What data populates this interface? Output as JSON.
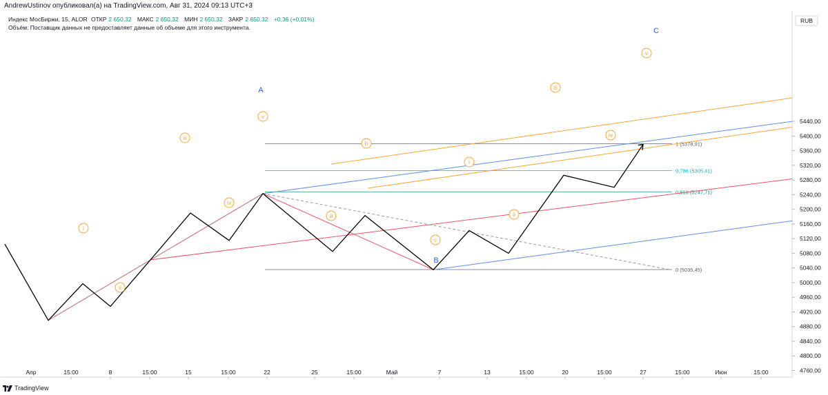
{
  "header": {
    "publisher_line": "AndrewUstinov опубликовал(а) на TradingView.com, Авг 31, 2024 09:13 UTC+3"
  },
  "legend": {
    "symbol": "Индекс МосБиржи, 15, ALOR",
    "open_label": "ОТКР",
    "open_value": "2 650,32",
    "high_label": "МАКС",
    "high_value": "2 650,32",
    "low_label": "МИН",
    "low_value": "2 650,32",
    "close_label": "ЗАКР",
    "close_value": "2 650,32",
    "change": "+0,36 (+0,01%)",
    "volume_note": "Объём: Поставщик данных не предоставляет данные об объеме для этого инструмента."
  },
  "footer": {
    "brand": "TradingView"
  },
  "chart_data": {
    "type": "line",
    "currency": "RUB",
    "ylim": [
      4735,
      5475
    ],
    "y_ticks": [
      {
        "v": 5440,
        "label": "5440,00"
      },
      {
        "v": 5400,
        "label": "5400,00"
      },
      {
        "v": 5360,
        "label": "5360,00"
      },
      {
        "v": 5320,
        "label": "5320,00"
      },
      {
        "v": 5280,
        "label": "5280,00"
      },
      {
        "v": 5240,
        "label": "5240,00"
      },
      {
        "v": 5200,
        "label": "5200,00"
      },
      {
        "v": 5160,
        "label": "5160,00"
      },
      {
        "v": 5120,
        "label": "5120,00"
      },
      {
        "v": 5080,
        "label": "5080,00"
      },
      {
        "v": 5040,
        "label": "5040,00"
      },
      {
        "v": 5000,
        "label": "5000,00"
      },
      {
        "v": 4960,
        "label": "4960,00"
      },
      {
        "v": 4920,
        "label": "4920,00"
      },
      {
        "v": 4880,
        "label": "4880,00"
      },
      {
        "v": 4840,
        "label": "4840,00"
      },
      {
        "v": 4800,
        "label": "4800,00"
      },
      {
        "v": 4760,
        "label": "4760,00"
      }
    ],
    "x_ticks": [
      "Апр",
      "15:00",
      "8",
      "15:00",
      "15",
      "15:00",
      "22",
      "25",
      "15:00",
      "Май",
      "7",
      "13",
      "15:00",
      "20",
      "15:00",
      "27",
      "15:00",
      "Июн",
      "15:00"
    ],
    "price_path": [
      [
        0,
        5105
      ],
      [
        1,
        4897
      ],
      [
        2,
        4997
      ],
      [
        3,
        4935
      ],
      [
        4,
        5062
      ],
      [
        5,
        5190
      ],
      [
        6,
        5115
      ],
      [
        7,
        5243
      ],
      [
        8,
        5085
      ],
      [
        9,
        5183
      ],
      [
        10,
        5035
      ],
      [
        11,
        5142
      ],
      [
        12,
        5080
      ],
      [
        13,
        5293
      ],
      [
        14,
        5260
      ],
      [
        15,
        5377
      ]
    ],
    "fibonacci_levels": [
      {
        "ratio": 1,
        "label": "1 (5378,91)",
        "value": 5378.91,
        "color": "#787b86"
      },
      {
        "ratio": 0.786,
        "label": "0,786 (5305,41)",
        "value": 5305.41,
        "color": "#00bcd4"
      },
      {
        "ratio": 0.618,
        "label": "0,618 (5247,71)",
        "value": 5247.71,
        "color": "#089981"
      },
      {
        "ratio": 0,
        "label": "0 (5035,45)",
        "value": 5035.45,
        "color": "#787b86"
      }
    ],
    "major_wave_labels": [
      "A",
      "B",
      "C"
    ],
    "minor_wave_labels": [
      "i",
      "ii",
      "iii",
      "iv",
      "v",
      "a",
      "b",
      "c",
      "i",
      "ii",
      "iii",
      "iv",
      "v"
    ],
    "colors": {
      "price": "#000000",
      "channel_blue": "#5b8def",
      "channel_orange": "#f7a531",
      "channel_red": "#f0525f",
      "wave_label": "#f7a531",
      "major_label": "#2962ff"
    }
  }
}
